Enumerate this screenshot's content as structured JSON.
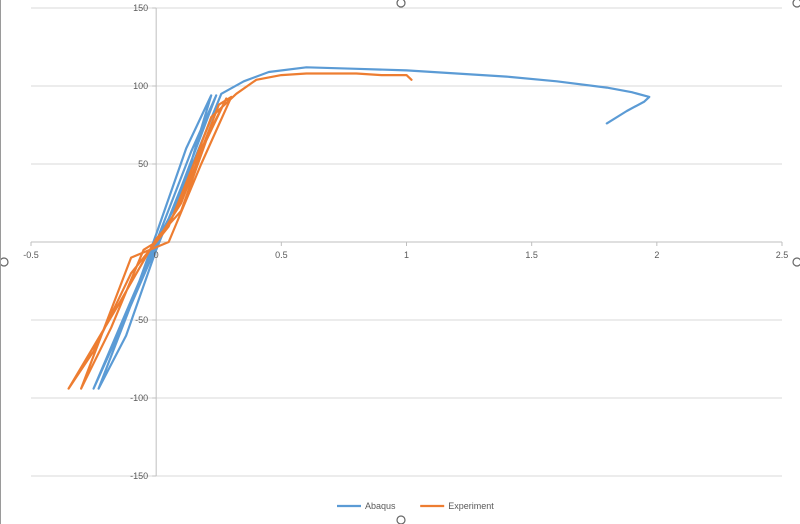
{
  "chart_data": {
    "type": "line",
    "title": "",
    "xlabel": "",
    "ylabel": "",
    "xlim": [
      -0.5,
      2.5
    ],
    "ylim": [
      -150,
      150
    ],
    "xticks": [
      -0.5,
      0,
      0.5,
      1,
      1.5,
      2,
      2.5
    ],
    "xtick_labels": [
      "-0.5",
      "0",
      "0.5",
      "1",
      "1.5",
      "2",
      "2.5"
    ],
    "yticks": [
      -150,
      -100,
      -50,
      50,
      100,
      150
    ],
    "ytick_labels": [
      "-150",
      "-100",
      "-50",
      "50",
      "100",
      "150"
    ],
    "grid": true,
    "legend_position": "bottom",
    "series": [
      {
        "name": "Abaqus",
        "color": "#5b9bd5",
        "points": [
          [
            0,
            0
          ],
          [
            0.1,
            30
          ],
          [
            0.22,
            94
          ],
          [
            0.12,
            60
          ],
          [
            0,
            5
          ],
          [
            -0.1,
            -40
          ],
          [
            -0.23,
            -94
          ],
          [
            -0.12,
            -60
          ],
          [
            0,
            -5
          ],
          [
            0.1,
            35
          ],
          [
            0.24,
            94
          ],
          [
            0.14,
            58
          ],
          [
            0,
            0
          ],
          [
            -0.12,
            -45
          ],
          [
            -0.25,
            -94
          ],
          [
            -0.14,
            -55
          ],
          [
            0,
            -3
          ],
          [
            0.12,
            40
          ],
          [
            0.26,
            95
          ],
          [
            0.35,
            103
          ],
          [
            0.45,
            109
          ],
          [
            0.6,
            112
          ],
          [
            0.8,
            111
          ],
          [
            1.0,
            110
          ],
          [
            1.2,
            108
          ],
          [
            1.4,
            106
          ],
          [
            1.6,
            103
          ],
          [
            1.8,
            99
          ],
          [
            1.9,
            96
          ],
          [
            1.97,
            93
          ],
          [
            1.95,
            90
          ],
          [
            1.88,
            84
          ],
          [
            1.8,
            76
          ]
        ]
      },
      {
        "name": "Experiment",
        "color": "#ed7d31",
        "points": [
          [
            0,
            0
          ],
          [
            0.05,
            10
          ],
          [
            0.15,
            50
          ],
          [
            0.28,
            92
          ],
          [
            0.2,
            65
          ],
          [
            0.1,
            20
          ],
          [
            0,
            2
          ],
          [
            -0.15,
            -40
          ],
          [
            -0.35,
            -94
          ],
          [
            -0.25,
            -70
          ],
          [
            -0.1,
            -20
          ],
          [
            0,
            0
          ],
          [
            0.1,
            25
          ],
          [
            0.25,
            88
          ],
          [
            0.3,
            93
          ],
          [
            0.18,
            50
          ],
          [
            0.05,
            0
          ],
          [
            -0.1,
            -10
          ],
          [
            -0.3,
            -94
          ],
          [
            -0.18,
            -55
          ],
          [
            -0.05,
            -5
          ],
          [
            0,
            0
          ],
          [
            0.08,
            20
          ],
          [
            0.22,
            80
          ],
          [
            0.32,
            95
          ],
          [
            0.4,
            104
          ],
          [
            0.5,
            107
          ],
          [
            0.6,
            108
          ],
          [
            0.8,
            108
          ],
          [
            0.9,
            107
          ],
          [
            1.0,
            107
          ],
          [
            1.02,
            104
          ]
        ]
      }
    ]
  }
}
